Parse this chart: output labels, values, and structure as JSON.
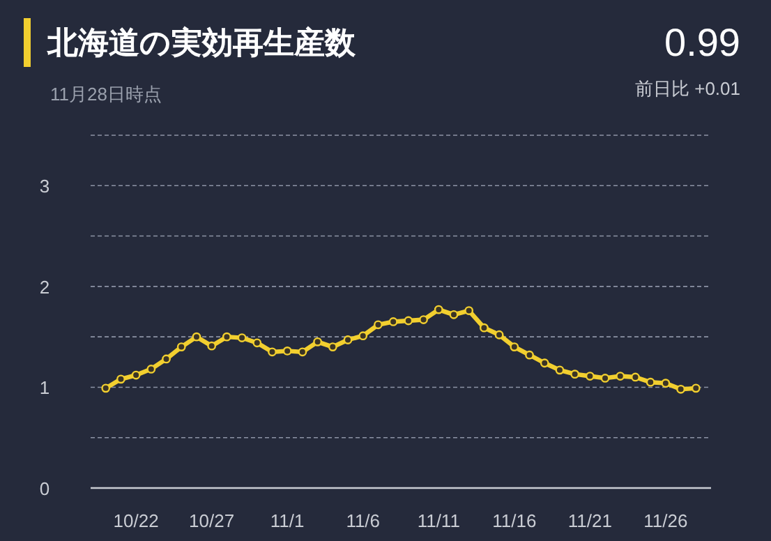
{
  "chart_data": {
    "type": "line",
    "title": "北海道の実効再生産数",
    "subtitle": "11月28日時点",
    "annotations": [
      "0.99",
      "前日比 +0.01"
    ],
    "x": [
      "--10-20",
      "--10-21",
      "--10-22",
      "--10-23",
      "--10-24",
      "--10-25",
      "--10-26",
      "--10-27",
      "--10-28",
      "--10-29",
      "--10-30",
      "--10-31",
      "--11-01",
      "--11-02",
      "--11-03",
      "--11-04",
      "--11-05",
      "--11-06",
      "--11-07",
      "--11-08",
      "--11-09",
      "--11-10",
      "--11-11",
      "--11-12",
      "--11-13",
      "--11-14",
      "--11-15",
      "--11-16",
      "--11-17",
      "--11-18",
      "--11-19",
      "--11-20",
      "--11-21",
      "--11-22",
      "--11-23",
      "--11-24",
      "--11-25",
      "--11-26",
      "--11-27",
      "--11-28"
    ],
    "series": [
      {
        "color": "#f2cf2f",
        "values": [
          0.99,
          1.08,
          1.12,
          1.18,
          1.28,
          1.4,
          1.5,
          1.41,
          1.5,
          1.49,
          1.44,
          1.35,
          1.36,
          1.35,
          1.45,
          1.4,
          1.47,
          1.51,
          1.62,
          1.65,
          1.66,
          1.67,
          1.77,
          1.72,
          1.76,
          1.59,
          1.52,
          1.4,
          1.32,
          1.24,
          1.17,
          1.13,
          1.11,
          1.09,
          1.11,
          1.1,
          1.05,
          1.04,
          0.98,
          0.99
        ]
      }
    ],
    "xlim": [
      "--10-19",
      "--11-29"
    ],
    "xticks": [
      {
        "value": "--10-22",
        "label": "10/22"
      },
      {
        "value": "--10-27",
        "label": "10/27"
      },
      {
        "value": "--11-01",
        "label": "11/1"
      },
      {
        "value": "--11-06",
        "label": "11/6"
      },
      {
        "value": "--11-11",
        "label": "11/11"
      },
      {
        "value": "--11-16",
        "label": "11/16"
      },
      {
        "value": "--11-21",
        "label": "11/21"
      },
      {
        "value": "--11-26",
        "label": "11/26"
      }
    ],
    "ylim": [
      0,
      3.5
    ],
    "yticks": [
      0,
      {
        "value": 0.5,
        "label": null
      },
      1,
      {
        "value": 1.5,
        "label": null
      },
      2,
      {
        "value": 2.5,
        "label": null
      },
      3,
      {
        "value": 3.5,
        "label": null
      }
    ],
    "grid": "y",
    "marker": "circle",
    "line_style": "solid"
  }
}
